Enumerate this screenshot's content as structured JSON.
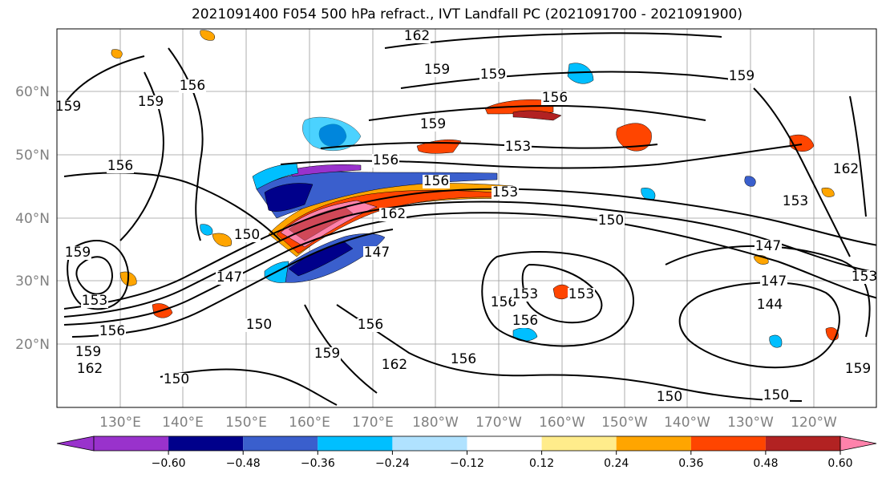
{
  "title": "2021091400 F054 500 hPa refract., IVT Landfall PC (2021091700 - 2021091900)",
  "lat_labels": [
    "60°N",
    "50°N",
    "40°N",
    "30°N",
    "20°N"
  ],
  "lon_labels": [
    "130°E",
    "140°E",
    "150°E",
    "160°E",
    "170°E",
    "180°W",
    "170°W",
    "160°W",
    "150°W",
    "140°W",
    "130°W",
    "120°W"
  ],
  "contour_labels": [
    "162",
    "159",
    "159",
    "156",
    "159",
    "159",
    "159",
    "156",
    "159",
    "153",
    "156",
    "156",
    "156",
    "153",
    "162",
    "150",
    "153",
    "150",
    "147",
    "147",
    "162",
    "147",
    "156",
    "153",
    "153",
    "156",
    "156",
    "150",
    "147",
    "144",
    "156",
    "156",
    "159",
    "159",
    "162",
    "150",
    "153",
    "150",
    "150",
    "159",
    "162",
    "153",
    "159"
  ],
  "colorbar": {
    "colors": [
      "#9932CC",
      "#00008B",
      "#3A5FCD",
      "#00BFFF",
      "#B0E2FF",
      "#FFFFFF",
      "#FFEC8B",
      "#FFA500",
      "#FF4500",
      "#B22222",
      "#FF82AB"
    ],
    "tick_labels": [
      "−0.60",
      "−0.48",
      "−0.36",
      "−0.24",
      "−0.12",
      "0.12",
      "0.24",
      "0.36",
      "0.48",
      "0.60"
    ]
  }
}
